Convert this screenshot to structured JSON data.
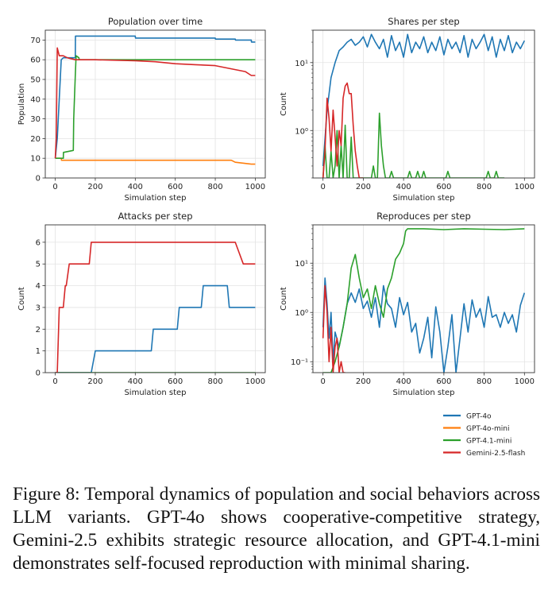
{
  "colors": {
    "gpt4o": "#1f77b4",
    "gpt4omini": "#ff7f0e",
    "gpt41mini": "#2ca02c",
    "gemini": "#d62728"
  },
  "legend": {
    "placement": "bottom-right",
    "entries": [
      "GPT-4o",
      "GPT-4o-mini",
      "GPT-4.1-mini",
      "Gemini-2.5-flash"
    ]
  },
  "chart_data": [
    {
      "type": "line",
      "title": "Population over time",
      "xlabel": "Simulation step",
      "ylabel": "Population",
      "xlim": [
        -50,
        1050
      ],
      "ylim": [
        0,
        75
      ],
      "xticks": [
        0,
        200,
        400,
        600,
        800,
        1000
      ],
      "yticks": [
        0,
        10,
        20,
        30,
        40,
        50,
        60,
        70
      ],
      "grid": true,
      "series": [
        {
          "name": "GPT-4o",
          "color": "#1f77b4",
          "x": [
            0,
            10,
            20,
            30,
            40,
            100,
            101,
            200,
            400,
            401,
            800,
            801,
            900,
            901,
            980,
            981,
            1000
          ],
          "y": [
            10,
            20,
            40,
            60,
            61,
            61,
            72,
            72,
            72,
            71,
            71,
            70.5,
            70.5,
            70,
            70,
            69,
            69
          ]
        },
        {
          "name": "GPT-4o-mini",
          "color": "#ff7f0e",
          "x": [
            0,
            30,
            31,
            880,
            900,
            980,
            1000
          ],
          "y": [
            10,
            10,
            9,
            9,
            8,
            7,
            7
          ]
        },
        {
          "name": "GPT-4.1-mini",
          "color": "#2ca02c",
          "x": [
            0,
            40,
            41,
            90,
            92,
            100,
            104,
            118,
            120,
            200,
            1000
          ],
          "y": [
            10,
            10,
            13,
            14,
            30,
            52,
            62,
            61,
            60,
            60,
            60
          ]
        },
        {
          "name": "Gemini-2.5-flash",
          "color": "#d62728",
          "x": [
            0,
            5,
            10,
            15,
            20,
            40,
            60,
            100,
            200,
            400,
            500,
            600,
            700,
            800,
            850,
            900,
            950,
            980,
            1000
          ],
          "y": [
            10,
            20,
            66,
            64,
            62,
            62,
            61,
            60,
            60,
            59.5,
            59,
            58,
            57.5,
            57,
            56,
            55,
            54,
            52,
            52
          ]
        }
      ]
    },
    {
      "type": "line",
      "title": "Shares per step",
      "xlabel": "Simulation step",
      "ylabel": "Count",
      "xscale": "linear",
      "yscale": "log",
      "xlim": [
        -50,
        1050
      ],
      "ylim": [
        0.2,
        30
      ],
      "xticks": [
        0,
        200,
        400,
        600,
        800,
        1000
      ],
      "grid": true,
      "series": [
        {
          "name": "GPT-4o",
          "color": "#1f77b4",
          "x": [
            0,
            20,
            40,
            60,
            80,
            100,
            120,
            140,
            160,
            180,
            200,
            220,
            240,
            260,
            280,
            300,
            320,
            340,
            360,
            380,
            400,
            420,
            440,
            460,
            480,
            500,
            520,
            540,
            560,
            580,
            600,
            620,
            640,
            660,
            680,
            700,
            720,
            740,
            760,
            780,
            800,
            820,
            840,
            860,
            880,
            900,
            920,
            940,
            960,
            980,
            1000
          ],
          "y": [
            0.3,
            2,
            6,
            10,
            15,
            17,
            20,
            22,
            18,
            20,
            24,
            17,
            26,
            20,
            16,
            22,
            12,
            25,
            15,
            20,
            12,
            26,
            14,
            20,
            16,
            24,
            14,
            20,
            15,
            24,
            13,
            22,
            16,
            20,
            14,
            25,
            12,
            22,
            16,
            20,
            26,
            15,
            24,
            12,
            22,
            15,
            25,
            14,
            20,
            16,
            21
          ]
        },
        {
          "name": "GPT-4.1-mini",
          "color": "#2ca02c",
          "x": [
            0,
            10,
            20,
            30,
            40,
            50,
            60,
            70,
            80,
            90,
            100,
            110,
            120,
            130,
            140,
            150,
            160,
            170,
            180,
            190,
            200,
            210,
            220,
            230,
            240,
            250,
            260,
            270,
            280,
            290,
            300,
            310,
            320,
            330,
            340,
            350,
            360,
            370,
            380,
            390,
            400,
            410,
            420,
            430,
            440,
            450,
            460,
            470,
            480,
            490,
            500,
            510,
            520,
            530,
            540,
            550,
            560,
            570,
            580,
            590,
            600,
            610,
            620,
            630,
            640,
            650,
            660,
            670,
            680,
            690,
            700,
            710,
            720,
            730,
            740,
            750,
            760,
            770,
            780,
            790,
            800,
            810,
            820,
            830,
            840,
            850,
            860,
            870,
            880,
            890,
            900
          ],
          "y": [
            0.2,
            0.6,
            0.2,
            0.2,
            0.5,
            0.2,
            0.3,
            1.0,
            0.2,
            0.6,
            0.2,
            1.2,
            0.2,
            0.2,
            0.8,
            0.2,
            0.2,
            0.2,
            0.2,
            0.2,
            0.2,
            0.2,
            0.2,
            0.2,
            0.2,
            0.3,
            0.2,
            0.2,
            1.8,
            0.6,
            0.3,
            0.2,
            0.2,
            0.2,
            0.25,
            0.2,
            0.2,
            0.2,
            0.2,
            0.2,
            0.2,
            0.2,
            0.2,
            0.25,
            0.2,
            0.2,
            0.2,
            0.25,
            0.2,
            0.2,
            0.25,
            0.2,
            0.2,
            0.2,
            0.2,
            0.2,
            0.2,
            0.2,
            0.2,
            0.2,
            0.2,
            0.2,
            0.25,
            0.2,
            0.2,
            0.2,
            0.2,
            0.2,
            0.2,
            0.2,
            0.2,
            0.2,
            0.2,
            0.2,
            0.2,
            0.2,
            0.2,
            0.2,
            0.2,
            0.2,
            0.2,
            0.2,
            0.25,
            0.2,
            0.2,
            0.2,
            0.25,
            0.2,
            0.2,
            0.2,
            0.2
          ]
        },
        {
          "name": "Gemini-2.5-flash",
          "color": "#d62728",
          "x": [
            0,
            10,
            20,
            30,
            40,
            50,
            60,
            70,
            80,
            90,
            100,
            110,
            120,
            130,
            140,
            150,
            160,
            170,
            180,
            190,
            200
          ],
          "y": [
            0.2,
            0.5,
            3,
            1.5,
            0.5,
            2,
            0.8,
            0.3,
            1,
            0.6,
            3,
            4.5,
            5,
            3.5,
            3.5,
            1.2,
            0.5,
            0.3,
            0.2,
            0.2,
            0.2
          ]
        }
      ]
    },
    {
      "type": "line",
      "title": "Attacks per step",
      "xlabel": "Simulation step",
      "ylabel": "Count",
      "xlim": [
        -50,
        1050
      ],
      "ylim": [
        0,
        6.8
      ],
      "xticks": [
        0,
        200,
        400,
        600,
        800,
        1000
      ],
      "yticks": [
        0,
        1,
        2,
        3,
        4,
        5,
        6
      ],
      "grid": true,
      "series": [
        {
          "name": "GPT-4o",
          "color": "#1f77b4",
          "x": [
            0,
            180,
            200,
            480,
            490,
            610,
            620,
            730,
            740,
            860,
            870,
            1000
          ],
          "y": [
            0,
            0,
            1,
            1,
            2,
            2,
            3,
            3,
            4,
            4,
            3,
            3
          ]
        },
        {
          "name": "GPT-4.1-mini",
          "color": "#2ca02c",
          "x": [
            0,
            1000
          ],
          "y": [
            0,
            0
          ]
        },
        {
          "name": "Gemini-2.5-flash",
          "color": "#d62728",
          "x": [
            0,
            10,
            20,
            40,
            50,
            55,
            70,
            80,
            170,
            180,
            200,
            900,
            940,
            1000
          ],
          "y": [
            0,
            0,
            3,
            3,
            4,
            4,
            5,
            5,
            5,
            6,
            6,
            6,
            5,
            5
          ]
        }
      ]
    },
    {
      "type": "line",
      "title": "Reproduces per step",
      "xlabel": "Simulation step",
      "ylabel": "Count",
      "xscale": "linear",
      "yscale": "log",
      "xlim": [
        -50,
        1050
      ],
      "ylim": [
        0.06,
        60
      ],
      "xticks": [
        0,
        200,
        400,
        600,
        800,
        1000
      ],
      "grid": true,
      "series": [
        {
          "name": "GPT-4o",
          "color": "#1f77b4",
          "x": [
            0,
            10,
            20,
            30,
            40,
            50,
            60,
            80,
            100,
            120,
            140,
            160,
            180,
            200,
            220,
            240,
            260,
            280,
            300,
            320,
            340,
            360,
            380,
            400,
            420,
            440,
            460,
            480,
            500,
            520,
            540,
            560,
            580,
            600,
            620,
            640,
            660,
            680,
            700,
            720,
            740,
            760,
            780,
            800,
            820,
            840,
            860,
            880,
            900,
            920,
            940,
            960,
            980,
            1000
          ],
          "y": [
            0.5,
            5,
            1.5,
            0.3,
            1,
            0.1,
            0.4,
            0.2,
            0.5,
            1.5,
            2.5,
            1.6,
            3,
            1.2,
            1.7,
            0.8,
            2,
            0.5,
            3.5,
            1.5,
            1.2,
            0.5,
            2,
            0.9,
            1.6,
            0.4,
            0.6,
            0.15,
            0.3,
            0.8,
            0.12,
            1.3,
            0.4,
            0.06,
            0.2,
            0.9,
            0.06,
            0.3,
            1.5,
            0.4,
            1.8,
            0.8,
            1.2,
            0.5,
            2.1,
            0.8,
            0.9,
            0.5,
            1,
            0.6,
            0.9,
            0.4,
            1.4,
            2.5
          ]
        },
        {
          "name": "GPT-4.1-mini",
          "color": "#2ca02c",
          "x": [
            0,
            40,
            60,
            80,
            100,
            120,
            140,
            160,
            180,
            200,
            220,
            240,
            260,
            280,
            300,
            320,
            340,
            360,
            380,
            400,
            410,
            420,
            500,
            600,
            700,
            800,
            900,
            1000
          ],
          "y": [
            0.06,
            0.06,
            0.1,
            0.2,
            0.5,
            1.5,
            8,
            15,
            5,
            2,
            3,
            1.2,
            3.5,
            1.5,
            0.8,
            3,
            5,
            12,
            16,
            25,
            45,
            50,
            50,
            48,
            50,
            49,
            48,
            50
          ]
        },
        {
          "name": "Gemini-2.5-flash",
          "color": "#d62728",
          "x": [
            0,
            10,
            20,
            30,
            40,
            50,
            60,
            70,
            80,
            90,
            100,
            110
          ],
          "y": [
            0.3,
            3.5,
            1,
            0.1,
            0.5,
            0.06,
            0.2,
            0.3,
            0.06,
            0.1,
            0.06,
            0.06
          ]
        }
      ]
    }
  ],
  "caption": "Figure 8: Temporal dynamics of population and social behaviors across LLM variants. GPT-4o shows cooperative-competitive strategy, Gemini-2.5 exhibits strategic resource allocation, and GPT-4.1-mini demonstrates self-focused reproduction with minimal sharing."
}
